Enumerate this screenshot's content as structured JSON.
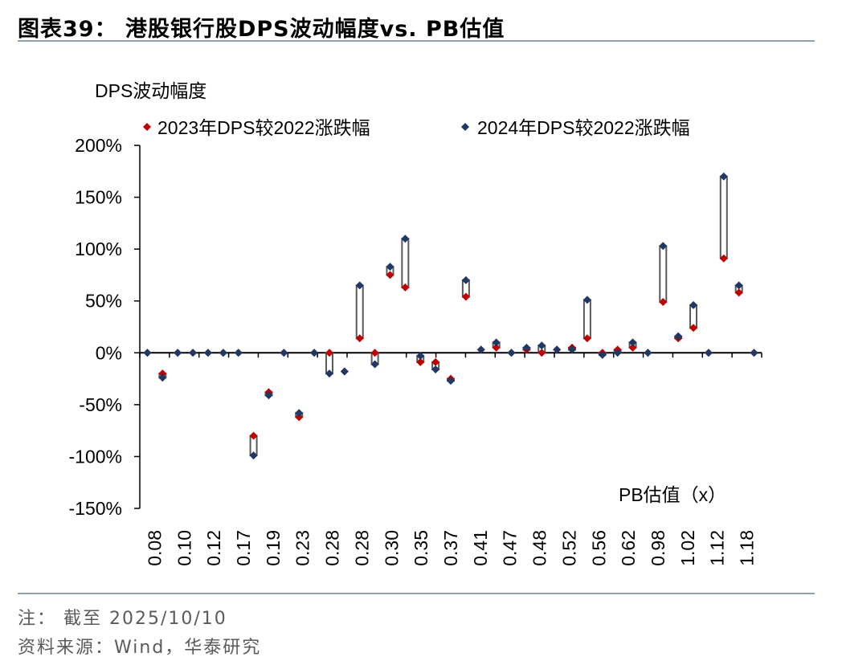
{
  "header": {
    "title": "图表39：  港股银行股DPS波动幅度vs. PB估值"
  },
  "footer": {
    "note": "注：  截至 2025/10/10",
    "source": "资料来源：Wind，华泰研究"
  },
  "colors": {
    "series_2023": "#c00000",
    "series_2024": "#1f3864",
    "connector": "#595959",
    "rule": "#8c9fb7"
  },
  "chart_data": {
    "type": "scatter",
    "title": "",
    "ylabel": "DPS波动幅度",
    "xlabel": "PB估值（x）",
    "ylim": [
      -150,
      200
    ],
    "yticks": [
      -150,
      -100,
      -50,
      0,
      50,
      100,
      150,
      200
    ],
    "ytick_labels": [
      "-150%",
      "-100%",
      "-50%",
      "0%",
      "50%",
      "100%",
      "150%",
      "200%"
    ],
    "xtick_labels": [
      "0.08",
      "0.10",
      "0.12",
      "0.17",
      "0.19",
      "0.23",
      "0.28",
      "0.28",
      "0.30",
      "0.35",
      "0.37",
      "0.41",
      "0.47",
      "0.48",
      "0.52",
      "0.56",
      "0.62",
      "0.98",
      "1.02",
      "1.12",
      "1.18"
    ],
    "x": [
      "0.08",
      "0.09",
      "0.10",
      "0.11",
      "0.12",
      "0.15",
      "0.17",
      "0.18",
      "0.19",
      "0.22",
      "0.23",
      "0.26",
      "0.28",
      "0.28",
      "0.28",
      "0.29",
      "0.30",
      "0.33",
      "0.35",
      "0.36",
      "0.37",
      "0.39",
      "0.41",
      "0.44",
      "0.47",
      "0.47",
      "0.48",
      "0.50",
      "0.52",
      "0.55",
      "0.56",
      "0.60",
      "0.62",
      "0.65",
      "0.98",
      "1.00",
      "1.02",
      "1.09",
      "1.12",
      "1.15",
      "1.18"
    ],
    "series": [
      {
        "name": "2023年DPS较2022涨跌幅",
        "values": [
          0,
          -20,
          0,
          0,
          0,
          0,
          0,
          -80,
          -38,
          0,
          -62,
          0,
          0,
          -18,
          14,
          0,
          75,
          63,
          -9,
          -9,
          -25,
          54,
          3,
          5,
          0,
          3,
          0,
          3,
          5,
          14,
          0,
          3,
          5,
          0,
          49,
          14,
          24,
          0,
          91,
          58,
          0
        ]
      },
      {
        "name": "2024年DPS较2022涨跌幅",
        "values": [
          0,
          -24,
          0,
          0,
          0,
          0,
          0,
          -99,
          -41,
          0,
          -58,
          0,
          -20,
          -18,
          65,
          -11,
          83,
          110,
          -3,
          -16,
          -27,
          70,
          3,
          10,
          0,
          5,
          7,
          3,
          3,
          51,
          -2,
          0,
          10,
          0,
          103,
          16,
          46,
          0,
          170,
          65,
          0
        ]
      }
    ],
    "legend": "top"
  }
}
